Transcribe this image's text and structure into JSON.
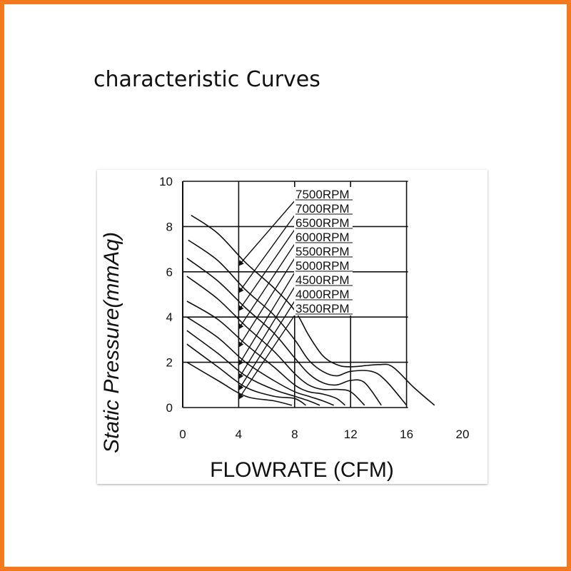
{
  "page": {
    "title": "characteristic Curves",
    "frame_color": "#f47a20"
  },
  "chart_data": {
    "type": "line",
    "xlabel": "FLOWRATE (CFM)",
    "ylabel": "Static  Pressure(mmAq)",
    "xlim": [
      0,
      20
    ],
    "ylim": [
      0,
      10
    ],
    "x_ticks": [
      0,
      4,
      8,
      12,
      16,
      20
    ],
    "y_ticks": [
      0,
      2,
      4,
      6,
      8,
      10
    ],
    "x_tick_labels": [
      "0",
      "4",
      "8",
      "12",
      "16",
      "20"
    ],
    "y_tick_labels": [
      "0",
      "2",
      "4",
      "6",
      "8",
      "10"
    ],
    "grid": true,
    "legend_labels": [
      "7500RPM",
      "7000RPM",
      "6500RPM",
      "6000RPM",
      "5500RPM",
      "5000RPM",
      "4500RPM",
      "4000RPM",
      "3500RPM"
    ],
    "series": [
      {
        "name": "7500RPM",
        "points": [
          [
            0.6,
            8.5
          ],
          [
            2.5,
            7.7
          ],
          [
            4.5,
            6.4
          ],
          [
            6.5,
            5.3
          ],
          [
            8,
            4.3
          ],
          [
            9,
            3.2
          ],
          [
            10,
            2.3
          ],
          [
            11,
            1.9
          ],
          [
            12,
            1.8
          ],
          [
            14,
            1.9
          ],
          [
            15,
            1.8
          ],
          [
            16.5,
            0.9
          ],
          [
            18,
            0.1
          ]
        ]
      },
      {
        "name": "7000RPM",
        "points": [
          [
            0.4,
            7.4
          ],
          [
            2.5,
            6.5
          ],
          [
            4.5,
            5.2
          ],
          [
            6.5,
            4.1
          ],
          [
            8,
            3.0
          ],
          [
            9,
            2.1
          ],
          [
            10,
            1.6
          ],
          [
            11,
            1.4
          ],
          [
            12,
            1.6
          ],
          [
            13.5,
            1.6
          ],
          [
            14.5,
            1.2
          ],
          [
            16,
            0.1
          ]
        ]
      },
      {
        "name": "6500RPM",
        "points": [
          [
            0.3,
            6.6
          ],
          [
            2.5,
            5.6
          ],
          [
            4.5,
            4.4
          ],
          [
            6.5,
            3.3
          ],
          [
            8,
            2.2
          ],
          [
            9,
            1.5
          ],
          [
            10,
            1.1
          ],
          [
            11,
            1.0
          ],
          [
            12,
            1.2
          ],
          [
            13,
            1.1
          ],
          [
            14.2,
            0.1
          ]
        ]
      },
      {
        "name": "6000RPM",
        "points": [
          [
            0.3,
            5.8
          ],
          [
            2.5,
            4.8
          ],
          [
            4.5,
            3.6
          ],
          [
            6.5,
            2.5
          ],
          [
            8,
            1.5
          ],
          [
            9,
            1.0
          ],
          [
            10,
            0.8
          ],
          [
            11,
            0.8
          ],
          [
            12,
            0.7
          ],
          [
            13,
            0.1
          ]
        ]
      },
      {
        "name": "5500RPM",
        "points": [
          [
            0.3,
            4.7
          ],
          [
            2.5,
            3.9
          ],
          [
            4.5,
            2.8
          ],
          [
            6.5,
            1.8
          ],
          [
            8,
            1.0
          ],
          [
            9,
            0.7
          ],
          [
            10,
            0.6
          ],
          [
            11,
            0.4
          ],
          [
            11.6,
            0.1
          ]
        ]
      },
      {
        "name": "5000RPM",
        "points": [
          [
            0.3,
            4.0
          ],
          [
            2.5,
            3.1
          ],
          [
            4.5,
            2.0
          ],
          [
            6.5,
            1.2
          ],
          [
            8,
            0.7
          ],
          [
            9,
            0.5
          ],
          [
            10,
            0.3
          ],
          [
            10.8,
            0.1
          ]
        ]
      },
      {
        "name": "4500RPM",
        "points": [
          [
            0.3,
            3.4
          ],
          [
            2.5,
            2.4
          ],
          [
            4.5,
            1.4
          ],
          [
            6.5,
            0.8
          ],
          [
            8,
            0.5
          ],
          [
            9,
            0.3
          ],
          [
            9.8,
            0.1
          ]
        ]
      },
      {
        "name": "4000RPM",
        "points": [
          [
            0.3,
            2.8
          ],
          [
            2.5,
            1.8
          ],
          [
            4.5,
            0.9
          ],
          [
            6.5,
            0.5
          ],
          [
            8,
            0.4
          ],
          [
            8.8,
            0.1
          ]
        ]
      },
      {
        "name": "3500RPM",
        "points": [
          [
            0.3,
            2.0
          ],
          [
            2.5,
            1.2
          ],
          [
            4.5,
            0.5
          ],
          [
            6.5,
            0.3
          ],
          [
            7.8,
            0.1
          ]
        ]
      }
    ]
  }
}
